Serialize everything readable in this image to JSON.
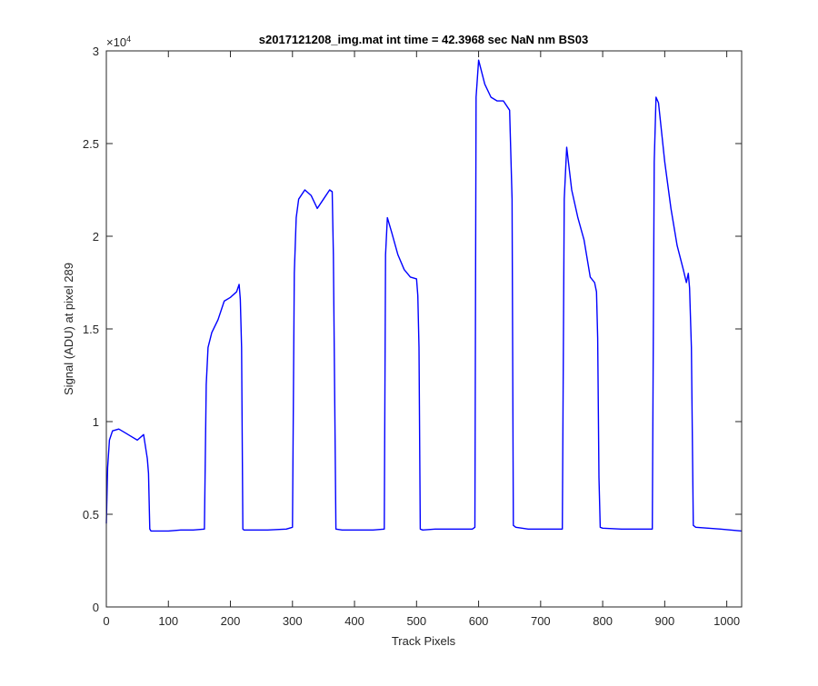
{
  "chart_data": {
    "type": "line",
    "title": "s2017121208_img.mat int time = 42.3968 sec  NaN nm BS03",
    "xlabel": "Track Pixels",
    "ylabel": "Signal (ADU) at pixel 289",
    "y_exponent_label": "×10",
    "y_exponent_power": "4",
    "xlim": [
      0,
      1024
    ],
    "ylim": [
      0,
      30000
    ],
    "xticks": [
      0,
      100,
      200,
      300,
      400,
      500,
      600,
      700,
      800,
      900,
      1000
    ],
    "xtick_labels": [
      "0",
      "100",
      "200",
      "300",
      "400",
      "500",
      "600",
      "700",
      "800",
      "900",
      "1000"
    ],
    "yticks": [
      0,
      5000,
      10000,
      15000,
      20000,
      25000,
      30000
    ],
    "ytick_labels": [
      "0",
      "0.5",
      "1",
      "1.5",
      "2",
      "2.5",
      "3"
    ],
    "grid": false,
    "line_color": "#0000ff",
    "series": [
      {
        "x": [
          0,
          2,
          5,
          10,
          20,
          30,
          40,
          50,
          60,
          66,
          68,
          70,
          72,
          80,
          100,
          120,
          140,
          158,
          161,
          164,
          170,
          180,
          190,
          200,
          210,
          214,
          216,
          218,
          220,
          222,
          230,
          260,
          290,
          300,
          303,
          306,
          310,
          320,
          330,
          340,
          350,
          360,
          364,
          366,
          370,
          380,
          400,
          430,
          448,
          450,
          453,
          460,
          470,
          480,
          490,
          500,
          502,
          504,
          506,
          510,
          530,
          560,
          590,
          594,
          596,
          600,
          610,
          620,
          630,
          640,
          650,
          654,
          656,
          660,
          680,
          710,
          735,
          738,
          742,
          750,
          760,
          770,
          780,
          787,
          790,
          792,
          794,
          796,
          800,
          830,
          860,
          880,
          883,
          886,
          890,
          900,
          910,
          920,
          930,
          935,
          938,
          940,
          943,
          946,
          950,
          990,
          1024
        ],
        "y": [
          4500,
          7500,
          9000,
          9500,
          9600,
          9400,
          9200,
          9000,
          9300,
          8000,
          7200,
          4200,
          4100,
          4100,
          4100,
          4150,
          4150,
          4200,
          12000,
          14000,
          14800,
          15500,
          16500,
          16700,
          17000,
          17400,
          16600,
          14000,
          4200,
          4150,
          4150,
          4150,
          4200,
          4300,
          18000,
          21000,
          22000,
          22500,
          22200,
          21500,
          22000,
          22500,
          22400,
          19000,
          4200,
          4150,
          4150,
          4150,
          4200,
          19000,
          21000,
          20200,
          19000,
          18200,
          17800,
          17700,
          16800,
          14000,
          4200,
          4150,
          4200,
          4200,
          4200,
          4300,
          27500,
          29500,
          28200,
          27500,
          27300,
          27300,
          26800,
          22000,
          4400,
          4300,
          4200,
          4200,
          4200,
          22000,
          24800,
          22500,
          21000,
          19800,
          17800,
          17500,
          17000,
          14500,
          7000,
          4300,
          4250,
          4200,
          4200,
          4200,
          24000,
          27500,
          27200,
          24000,
          21500,
          19500,
          18200,
          17500,
          18000,
          17200,
          14000,
          4400,
          4300,
          4200,
          4100
        ]
      }
    ]
  }
}
